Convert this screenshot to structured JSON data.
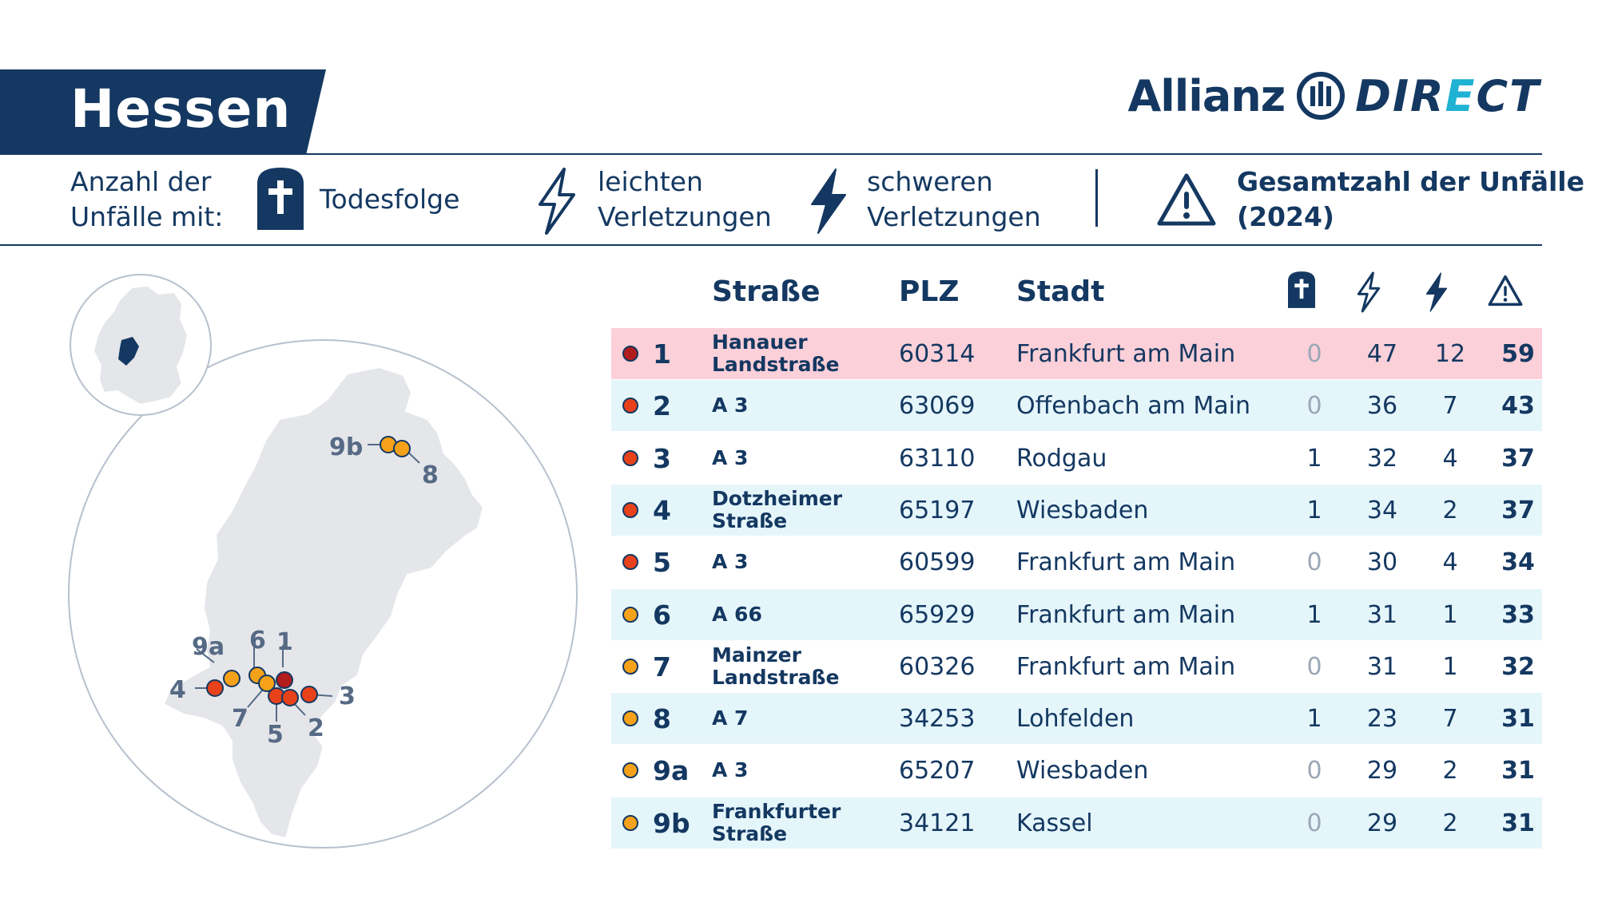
{
  "title": "Hessen",
  "brand": {
    "part1": "Allianz",
    "part2_a": "DIR",
    "part2_b": "E",
    "part2_c": "CT"
  },
  "colors": {
    "navy": "#143861",
    "cyan": "#1fb2d2",
    "highlight": "#fbd0d9",
    "alt": "#e5f6fb",
    "dark_red": "#b11c1c",
    "red": "#e8421b",
    "orange": "#f5a21a",
    "map_fill": "#e4e6ea"
  },
  "legend": {
    "lead_line1": "Anzahl der",
    "lead_line2": "Unfälle mit:",
    "fatal_icon": "cross-icon",
    "fatal_label": "Todesfolge",
    "light_icon": "lightning-outline-icon",
    "light_line1": "leichten",
    "light_line2": "Verletzungen",
    "heavy_icon": "lightning-filled-icon",
    "heavy_line1": "schweren",
    "heavy_line2": "Verletzungen",
    "total_icon": "warning-icon",
    "total_line1": "Gesamtzahl der Unfälle",
    "total_line2": "(2024)"
  },
  "table": {
    "headers": {
      "street": "Straße",
      "plz": "PLZ",
      "city": "Stadt"
    },
    "rows": [
      {
        "rank": "1",
        "street": "Hanauer Landstraße",
        "plz": "60314",
        "city": "Frankfurt am Main",
        "fatal": "0",
        "light": "47",
        "heavy": "12",
        "total": "59",
        "dot": "#b11c1c",
        "bg": "#fbd0d9"
      },
      {
        "rank": "2",
        "street": "A 3",
        "plz": "63069",
        "city": "Offenbach am Main",
        "fatal": "0",
        "light": "36",
        "heavy": "7",
        "total": "43",
        "dot": "#e8421b",
        "bg": "#e5f6fb"
      },
      {
        "rank": "3",
        "street": "A 3",
        "plz": "63110",
        "city": "Rodgau",
        "fatal": "1",
        "light": "32",
        "heavy": "4",
        "total": "37",
        "dot": "#e8421b",
        "bg": "#ffffff"
      },
      {
        "rank": "4",
        "street": "Dotzheimer Straße",
        "plz": "65197",
        "city": "Wiesbaden",
        "fatal": "1",
        "light": "34",
        "heavy": "2",
        "total": "37",
        "dot": "#e8421b",
        "bg": "#e5f6fb"
      },
      {
        "rank": "5",
        "street": "A 3",
        "plz": "60599",
        "city": "Frankfurt am Main",
        "fatal": "0",
        "light": "30",
        "heavy": "4",
        "total": "34",
        "dot": "#e8421b",
        "bg": "#ffffff"
      },
      {
        "rank": "6",
        "street": "A 66",
        "plz": "65929",
        "city": "Frankfurt am Main",
        "fatal": "1",
        "light": "31",
        "heavy": "1",
        "total": "33",
        "dot": "#f5a21a",
        "bg": "#e5f6fb"
      },
      {
        "rank": "7",
        "street": "Mainzer Landstraße",
        "plz": "60326",
        "city": "Frankfurt am Main",
        "fatal": "0",
        "light": "31",
        "heavy": "1",
        "total": "32",
        "dot": "#f5a21a",
        "bg": "#ffffff"
      },
      {
        "rank": "8",
        "street": "A 7",
        "plz": "34253",
        "city": "Lohfelden",
        "fatal": "1",
        "light": "23",
        "heavy": "7",
        "total": "31",
        "dot": "#f5a21a",
        "bg": "#e5f6fb"
      },
      {
        "rank": "9a",
        "street": "A 3",
        "plz": "65207",
        "city": "Wiesbaden",
        "fatal": "0",
        "light": "29",
        "heavy": "2",
        "total": "31",
        "dot": "#f5a21a",
        "bg": "#ffffff"
      },
      {
        "rank": "9b",
        "street": "Frankfurter Straße",
        "plz": "34121",
        "city": "Kassel",
        "fatal": "0",
        "light": "29",
        "heavy": "2",
        "total": "31",
        "dot": "#f5a21a",
        "bg": "#e5f6fb"
      }
    ]
  },
  "map": {
    "labels": [
      "1",
      "2",
      "3",
      "4",
      "5",
      "6",
      "7",
      "8",
      "9a",
      "9b"
    ]
  }
}
